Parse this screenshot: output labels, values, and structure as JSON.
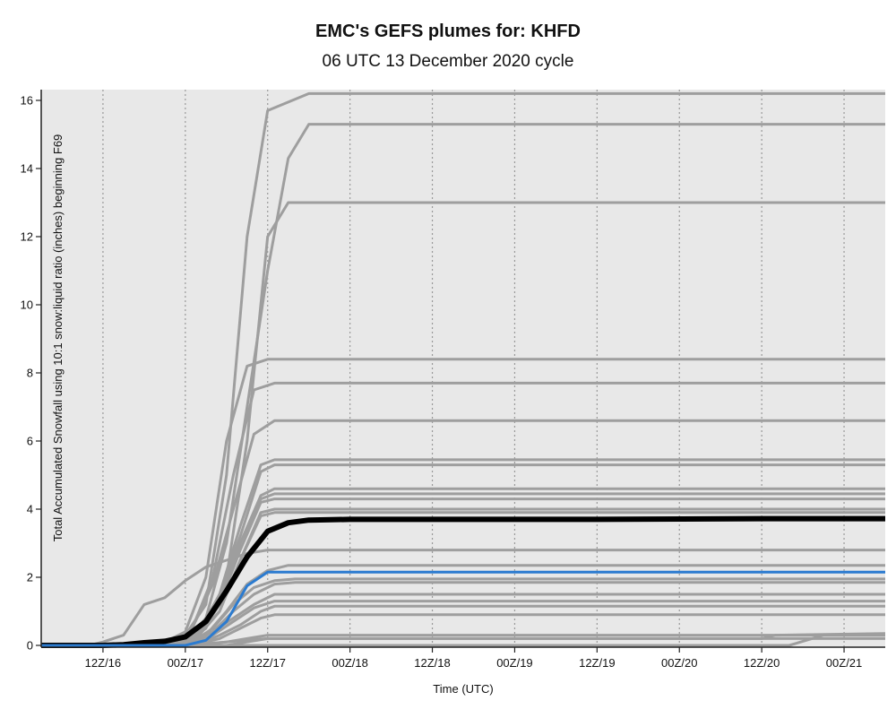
{
  "chart_data": {
    "type": "line",
    "title": "EMC's GEFS plumes for: KHFD",
    "subtitle": "06 UTC 13 December 2020 cycle",
    "xlabel": "Time (UTC)",
    "ylabel": "Total Accumulated Snowfall using 10:1 snow:liquid ratio (inches) beginning F69",
    "ylim": [
      0,
      16
    ],
    "xlim_hours": [
      69,
      192
    ],
    "grid": true,
    "x_ticks": [
      {
        "hour": 78,
        "label": "12Z/16"
      },
      {
        "hour": 90,
        "label": "00Z/17"
      },
      {
        "hour": 102,
        "label": "12Z/17"
      },
      {
        "hour": 114,
        "label": "00Z/18"
      },
      {
        "hour": 126,
        "label": "12Z/18"
      },
      {
        "hour": 138,
        "label": "00Z/19"
      },
      {
        "hour": 150,
        "label": "12Z/19"
      },
      {
        "hour": 162,
        "label": "00Z/20"
      },
      {
        "hour": 174,
        "label": "12Z/20"
      },
      {
        "hour": 186,
        "label": "00Z/21"
      }
    ],
    "y_ticks": [
      0,
      2,
      4,
      6,
      8,
      10,
      12,
      14,
      16
    ],
    "colors": {
      "members": "#9e9e9e",
      "mean": "#000000",
      "control": "#2b7bd0",
      "background": "#e8e8e8",
      "grid": "#999999"
    },
    "members": [
      {
        "hours": [
          69,
          84,
          87,
          90,
          93,
          96,
          99,
          102,
          108,
          192
        ],
        "values": [
          0,
          0,
          0.1,
          0.3,
          1.2,
          5.0,
          12.0,
          15.7,
          16.2,
          16.2
        ]
      },
      {
        "hours": [
          69,
          87,
          90,
          93,
          96,
          99,
          102,
          105,
          108,
          192
        ],
        "values": [
          0,
          0,
          0.1,
          0.8,
          3.0,
          7.0,
          11.0,
          14.3,
          15.3,
          15.3
        ]
      },
      {
        "hours": [
          69,
          87,
          90,
          93,
          96,
          99,
          102,
          105,
          192
        ],
        "values": [
          0,
          0,
          0.1,
          0.5,
          2.0,
          6.0,
          12.0,
          13.0,
          13.0
        ]
      },
      {
        "hours": [
          69,
          84,
          87,
          90,
          93,
          96,
          99,
          102,
          192
        ],
        "values": [
          0,
          0,
          0.1,
          0.4,
          2.0,
          6.0,
          8.2,
          8.4,
          8.4
        ]
      },
      {
        "hours": [
          69,
          85,
          88,
          91,
          94,
          97,
          100,
          103,
          192
        ],
        "values": [
          0,
          0,
          0.1,
          0.5,
          2.0,
          5.0,
          7.5,
          7.7,
          7.7
        ]
      },
      {
        "hours": [
          69,
          85,
          88,
          91,
          94,
          97,
          100,
          103,
          192
        ],
        "values": [
          0,
          0,
          0.1,
          0.5,
          1.8,
          4.0,
          6.2,
          6.6,
          6.6
        ]
      },
      {
        "hours": [
          69,
          86,
          89,
          92,
          95,
          98,
          101,
          103,
          192
        ],
        "values": [
          0,
          0,
          0.1,
          0.4,
          1.5,
          3.5,
          5.3,
          5.45,
          5.45
        ]
      },
      {
        "hours": [
          69,
          86,
          89,
          92,
          95,
          98,
          101,
          103,
          192
        ],
        "values": [
          0,
          0,
          0.1,
          0.4,
          1.5,
          3.2,
          5.1,
          5.3,
          5.3
        ]
      },
      {
        "hours": [
          69,
          86,
          89,
          92,
          95,
          98,
          101,
          103,
          192
        ],
        "values": [
          0,
          0,
          0.1,
          0.4,
          1.3,
          3.0,
          4.4,
          4.6,
          4.6
        ]
      },
      {
        "hours": [
          69,
          86,
          89,
          92,
          95,
          98,
          101,
          103,
          192
        ],
        "values": [
          0,
          0,
          0.1,
          0.3,
          1.2,
          3.0,
          4.3,
          4.45,
          4.45
        ]
      },
      {
        "hours": [
          69,
          86,
          89,
          92,
          95,
          98,
          101,
          103,
          192
        ],
        "values": [
          0,
          0,
          0.1,
          0.3,
          1.2,
          2.8,
          4.2,
          4.3,
          4.3
        ]
      },
      {
        "hours": [
          69,
          86,
          89,
          92,
          95,
          98,
          101,
          103,
          192
        ],
        "values": [
          0,
          0,
          0.1,
          0.3,
          1.0,
          2.5,
          3.9,
          4.0,
          4.0
        ]
      },
      {
        "hours": [
          69,
          86,
          89,
          92,
          95,
          98,
          101,
          103,
          192
        ],
        "values": [
          0,
          0,
          0.1,
          0.3,
          1.0,
          2.5,
          3.8,
          3.9,
          3.9
        ]
      },
      {
        "hours": [
          69,
          76,
          78,
          81,
          84,
          87,
          90,
          93,
          96,
          99,
          102,
          192
        ],
        "values": [
          0,
          0,
          0.1,
          0.3,
          1.2,
          1.4,
          1.9,
          2.3,
          2.5,
          2.7,
          2.8,
          2.8
        ]
      },
      {
        "hours": [
          69,
          87,
          90,
          93,
          96,
          99,
          102,
          105,
          192
        ],
        "values": [
          0,
          0,
          0.1,
          0.3,
          1.0,
          1.8,
          2.2,
          2.35,
          2.35
        ]
      },
      {
        "hours": [
          69,
          88,
          91,
          94,
          97,
          100,
          103,
          106,
          192
        ],
        "values": [
          0,
          0,
          0.1,
          0.5,
          1.2,
          1.7,
          1.9,
          1.95,
          1.95
        ]
      },
      {
        "hours": [
          69,
          88,
          91,
          94,
          97,
          100,
          103,
          106,
          192
        ],
        "values": [
          0,
          0,
          0.1,
          0.4,
          1.0,
          1.5,
          1.8,
          1.85,
          1.85
        ]
      },
      {
        "hours": [
          69,
          88,
          91,
          94,
          97,
          100,
          103,
          192
        ],
        "values": [
          0,
          0,
          0.1,
          0.4,
          0.8,
          1.2,
          1.5,
          1.5
        ]
      },
      {
        "hours": [
          69,
          88,
          91,
          94,
          97,
          100,
          103,
          192
        ],
        "values": [
          0,
          0,
          0.05,
          0.3,
          0.7,
          1.1,
          1.3,
          1.3
        ]
      },
      {
        "hours": [
          69,
          89,
          92,
          95,
          98,
          101,
          103,
          192
        ],
        "values": [
          0,
          0,
          0.05,
          0.3,
          0.6,
          1.0,
          1.15,
          1.15
        ]
      },
      {
        "hours": [
          69,
          89,
          92,
          95,
          98,
          101,
          103,
          192
        ],
        "values": [
          0,
          0,
          0.05,
          0.2,
          0.5,
          0.8,
          0.9,
          0.9
        ]
      },
      {
        "hours": [
          69,
          90,
          93,
          96,
          99,
          102,
          192
        ],
        "values": [
          0,
          0,
          0.05,
          0.1,
          0.2,
          0.3,
          0.3
        ]
      },
      {
        "hours": [
          69,
          90,
          93,
          96,
          99,
          102,
          174,
          176,
          192
        ],
        "values": [
          0,
          0,
          0.05,
          0.1,
          0.15,
          0.2,
          0.2,
          0.3,
          0.35
        ]
      },
      {
        "hours": [
          69,
          96,
          99,
          102,
          192
        ],
        "values": [
          0,
          0,
          0.1,
          0.2,
          0.2
        ]
      },
      {
        "hours": [
          69,
          178,
          183,
          192
        ],
        "values": [
          0,
          0,
          0.3,
          0.3
        ]
      }
    ],
    "mean": {
      "name": "mean",
      "hours": [
        69,
        78,
        81,
        84,
        87,
        90,
        93,
        96,
        99,
        102,
        105,
        108,
        114,
        150,
        174,
        192
      ],
      "values": [
        0,
        0,
        0.02,
        0.08,
        0.12,
        0.25,
        0.7,
        1.6,
        2.6,
        3.35,
        3.6,
        3.68,
        3.7,
        3.7,
        3.72,
        3.72
      ]
    },
    "control": {
      "name": "control",
      "hours": [
        69,
        90,
        93,
        96,
        99,
        102,
        192
      ],
      "values": [
        0,
        0,
        0.15,
        0.7,
        1.75,
        2.15,
        2.15
      ]
    }
  }
}
